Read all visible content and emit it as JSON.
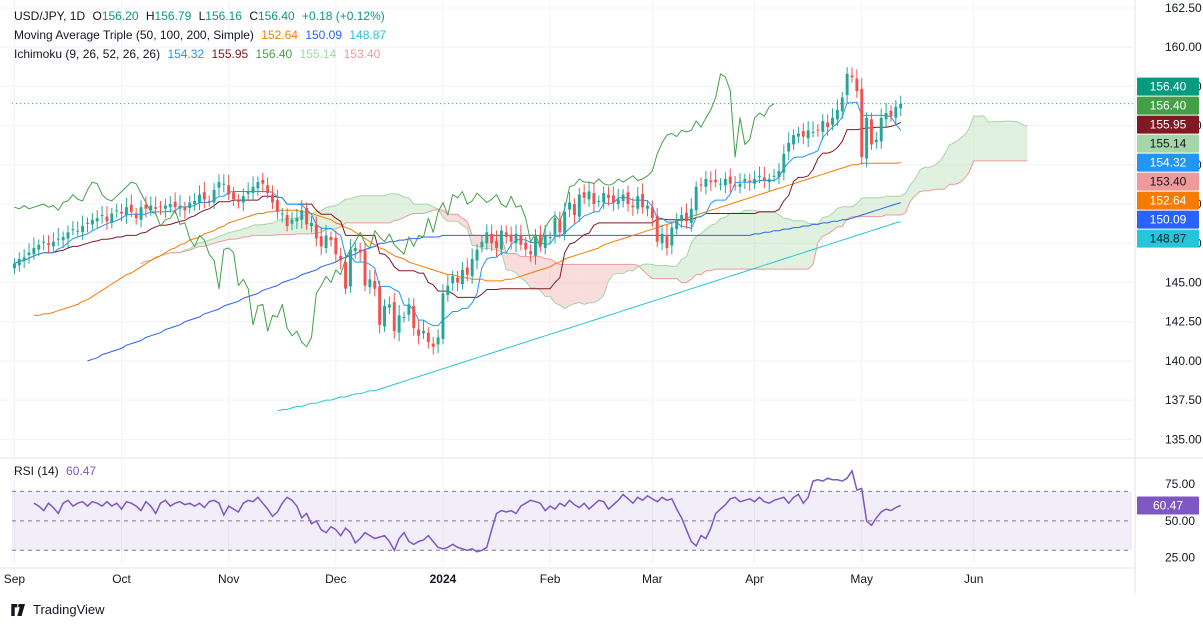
{
  "header": {
    "symbol": "USD/JPY, 1D",
    "o_label": "O",
    "open": "156.20",
    "h_label": "H",
    "high": "156.79",
    "l_label": "L",
    "low": "156.16",
    "c_label": "C",
    "close": "156.40",
    "change": "+0.18 (+0.12%)"
  },
  "ma_legend": {
    "label": "Moving Average Triple (50, 100, 200, Simple)",
    "v50": "152.64",
    "v100": "150.09",
    "v200": "148.87"
  },
  "ichimoku_legend": {
    "label": "Ichimoku (9, 26, 52, 26, 26)",
    "conversion": "154.32",
    "base": "155.95",
    "lagging": "156.40",
    "spanA": "155.14",
    "spanB": "153.40"
  },
  "rsi_legend": {
    "label": "RSI (14)",
    "value": "60.47"
  },
  "branding": {
    "name": "TradingView"
  },
  "colors": {
    "up": "#26a69a",
    "down": "#ef5350",
    "ma50": "#f57c00",
    "ma100": "#2962ff",
    "ma200": "#26c6da",
    "conversion": "#2196f3",
    "base": "#801922",
    "lagging": "#43a047",
    "cloud_bull": "#a5d6a7",
    "cloud_bear": "#ef9a9a",
    "rsi": "#7e57c2"
  },
  "chart_data": [
    {
      "type": "candlestick",
      "title": "USD/JPY, 1D",
      "x_ticks": [
        "Sep",
        "Oct",
        "Nov",
        "Dec",
        "2024",
        "Feb",
        "Mar",
        "Apr",
        "May",
        "Jun"
      ],
      "y_ticks": [
        "135.00",
        "137.50",
        "140.00",
        "142.50",
        "145.00",
        "147.50",
        "150.00",
        "152.50",
        "155.00",
        "157.50",
        "160.00",
        "162.50"
      ],
      "ylim": [
        134,
        162.5
      ],
      "last_close": 156.4,
      "price_labels": [
        {
          "text": "156.40",
          "value": 156.4,
          "color": "#089981"
        },
        {
          "text": "156.40",
          "value": 156.4,
          "color": "#43a047"
        },
        {
          "text": "155.95",
          "value": 155.95,
          "color": "#801922"
        },
        {
          "text": "155.14",
          "value": 155.14,
          "color": "#a5d6a7"
        },
        {
          "text": "154.32",
          "value": 154.32,
          "color": "#2196f3"
        },
        {
          "text": "153.40",
          "value": 153.4,
          "color": "#ef9a9a"
        },
        {
          "text": "152.64",
          "value": 152.64,
          "color": "#f57c00"
        },
        {
          "text": "150.09",
          "value": 150.09,
          "color": "#2962ff"
        },
        {
          "text": "148.87",
          "value": 148.87,
          "color": "#26c6da"
        }
      ],
      "x_months_at_index": {
        "Sep": 0,
        "Oct": 22,
        "Nov": 44,
        "Dec": 66,
        "2024": 88,
        "Feb": 110,
        "Mar": 131,
        "Apr": 152,
        "May": 174,
        "Jun": 197
      },
      "close": [
        146.2,
        146.5,
        146.6,
        146.9,
        147.2,
        147.4,
        147.6,
        147.4,
        147.6,
        147.8,
        147.9,
        148.2,
        148.4,
        148.3,
        148.6,
        148.8,
        149.0,
        149.1,
        149.3,
        148.9,
        149.4,
        149.6,
        149.4,
        149.8,
        149.5,
        149.1,
        149.8,
        149.7,
        149.9,
        149.7,
        149.8,
        149.9,
        150.0,
        149.8,
        149.9,
        149.6,
        150.1,
        150.2,
        150.6,
        150.3,
        150.2,
        150.9,
        151.4,
        151.3,
        150.6,
        150.3,
        150.2,
        150.5,
        150.8,
        151.1,
        151.4,
        151.3,
        150.7,
        150.1,
        149.5,
        149.4,
        148.6,
        149.0,
        149.1,
        149.6,
        148.7,
        148.8,
        147.8,
        147.3,
        148.0,
        147.7,
        146.8,
        146.4,
        144.6,
        147.1,
        147.2,
        146.9,
        144.8,
        145.2,
        144.6,
        142.3,
        143.5,
        143.6,
        141.9,
        142.9,
        142.8,
        143.6,
        142.1,
        141.6,
        141.9,
        141.2,
        140.9,
        141.5,
        144.3,
        144.8,
        145.4,
        145.0,
        145.8,
        145.5,
        146.5,
        147.1,
        147.6,
        148.2,
        147.5,
        147.2,
        148.3,
        147.9,
        147.6,
        148.1,
        147.4,
        147.1,
        146.8,
        147.9,
        147.3,
        148.0,
        147.9,
        149.1,
        148.2,
        149.5,
        150.1,
        149.3,
        150.6,
        150.4,
        150.8,
        150.0,
        150.2,
        150.7,
        150.4,
        150.1,
        150.3,
        150.6,
        150.0,
        149.8,
        150.5,
        149.8,
        149.9,
        149.1,
        147.6,
        148.1,
        147.2,
        148.5,
        149.0,
        149.3,
        148.9,
        149.7,
        151.1,
        151.2,
        151.6,
        151.4,
        151.4,
        151.3,
        151.6,
        151.3,
        151.2,
        151.3,
        151.6,
        151.4,
        151.6,
        151.8,
        151.5,
        151.6,
        151.8,
        152.1,
        153.2,
        153.9,
        154.4,
        154.5,
        154.3,
        154.7,
        154.6,
        154.7,
        155.3,
        154.9,
        155.5,
        156.0,
        156.8,
        158.3,
        158.1,
        157.2,
        153.0,
        155.5,
        153.8,
        154.1,
        155.5,
        155.8,
        155.6,
        156.2,
        156.4
      ],
      "open_offset_note": "",
      "ma50": [
        142.9,
        142.9,
        143.0,
        143.0,
        143.1,
        143.2,
        143.3,
        143.4,
        143.5,
        143.6,
        143.8,
        143.9,
        144.1,
        144.3,
        144.5,
        144.7,
        144.9,
        145.1,
        145.3,
        145.5,
        145.6,
        145.8,
        146.0,
        146.2,
        146.4,
        146.6,
        146.7,
        146.9,
        147.1,
        147.2,
        147.4,
        147.5,
        147.7,
        147.8,
        147.9,
        148.1,
        148.2,
        148.3,
        148.5,
        148.6,
        148.8,
        148.9,
        149.0,
        149.1,
        149.2,
        149.3,
        149.4,
        149.4,
        149.5,
        149.5,
        149.6,
        149.6,
        149.6,
        149.6,
        149.6,
        149.5,
        149.5,
        149.4,
        149.3,
        149.2,
        149.1,
        149.0,
        148.8,
        148.7,
        148.5,
        148.4,
        148.2,
        148.0,
        147.8,
        147.6,
        147.4,
        147.2,
        147.1,
        146.9,
        146.7,
        146.6,
        146.5,
        146.3,
        146.2,
        146.1,
        146.0,
        145.9,
        145.8,
        145.7,
        145.6,
        145.5,
        145.5,
        145.4,
        145.3,
        145.3,
        145.2,
        145.2,
        145.2,
        145.1,
        145.1,
        145.1,
        145.1,
        145.2,
        145.2,
        145.3,
        145.4,
        145.5,
        145.6,
        145.7,
        145.8,
        145.9,
        146.0,
        146.2,
        146.3,
        146.5,
        146.6,
        146.7,
        146.8,
        146.9,
        147.0,
        147.1,
        147.2,
        147.4,
        147.5,
        147.6,
        147.7,
        147.8,
        147.9,
        148.0,
        148.1,
        148.2,
        148.3,
        148.4,
        148.5,
        148.6,
        148.7,
        148.8,
        148.9,
        149.0,
        149.1,
        149.2,
        149.3,
        149.4,
        149.5,
        149.6,
        149.7,
        149.8,
        149.9,
        150.0,
        150.1,
        150.2,
        150.3,
        150.4,
        150.5,
        150.6,
        150.7,
        150.8,
        150.9,
        151.0,
        151.1,
        151.2,
        151.3,
        151.4,
        151.5,
        151.6,
        151.7,
        151.8,
        151.9,
        152.0,
        152.1,
        152.2,
        152.3,
        152.4,
        152.5,
        152.5,
        152.6,
        152.6,
        152.6,
        152.6,
        152.6,
        152.6,
        152.6,
        152.6,
        152.64
      ],
      "ma100": [
        140.0,
        140.1,
        140.2,
        140.4,
        140.5,
        140.6,
        140.7,
        140.8,
        141.0,
        141.1,
        141.2,
        141.3,
        141.5,
        141.6,
        141.7,
        141.8,
        142.0,
        142.1,
        142.2,
        142.3,
        142.5,
        142.6,
        142.7,
        142.8,
        143.0,
        143.1,
        143.2,
        143.3,
        143.5,
        143.6,
        143.7,
        143.8,
        144.0,
        144.1,
        144.2,
        144.3,
        144.5,
        144.6,
        144.7,
        144.8,
        145.0,
        145.1,
        145.2,
        145.3,
        145.5,
        145.6,
        145.7,
        145.8,
        146.0,
        146.1,
        146.2,
        146.3,
        146.5,
        146.6,
        146.7,
        146.8,
        147.0,
        147.1,
        147.2,
        147.3,
        147.5,
        147.5,
        147.6,
        147.6,
        147.7,
        147.7,
        147.8,
        147.8,
        147.8,
        147.9,
        147.9,
        147.9,
        147.9,
        148.0,
        148.0,
        148.0,
        148.0,
        148.0,
        148.0,
        148.0,
        148.0,
        148.0,
        148.0,
        148.0,
        148.0,
        148.0,
        148.0,
        148.0,
        148.0,
        148.0,
        148.0,
        148.0,
        148.0,
        148.0,
        148.0,
        148.0,
        148.0,
        148.0,
        148.0,
        148.0,
        148.0,
        148.0,
        148.0,
        148.0,
        148.0,
        148.0,
        148.0,
        148.0,
        148.0,
        148.0,
        148.0,
        148.0,
        148.0,
        148.0,
        148.0,
        148.0,
        148.0,
        148.0,
        148.0,
        148.0,
        148.0,
        148.0,
        148.0,
        148.0,
        148.0,
        148.0,
        148.0,
        148.0,
        148.0,
        148.0,
        148.0,
        148.0,
        148.0,
        148.0,
        148.0,
        148.0,
        148.0,
        148.1,
        148.1,
        148.2,
        148.2,
        148.3,
        148.3,
        148.4,
        148.4,
        148.5,
        148.5,
        148.6,
        148.6,
        148.7,
        148.7,
        148.8,
        148.8,
        148.9,
        148.9,
        149.0,
        149.0,
        149.1,
        149.2,
        149.3,
        149.4,
        149.5,
        149.6,
        149.7,
        149.8,
        149.9,
        150.0,
        150.09
      ],
      "ma200": [
        136.8,
        136.9,
        136.9,
        137.0,
        137.1,
        137.1,
        137.2,
        137.3,
        137.3,
        137.4,
        137.5,
        137.5,
        137.6,
        137.7,
        137.7,
        137.8,
        137.9,
        137.9,
        138.0,
        138.1,
        138.1,
        138.2,
        138.3,
        138.4,
        138.5,
        138.6,
        138.7,
        138.8,
        138.9,
        139.0,
        139.1,
        139.2,
        139.3,
        139.4,
        139.5,
        139.6,
        139.7,
        139.8,
        139.9,
        140.0,
        140.1,
        140.2,
        140.3,
        140.4,
        140.5,
        140.6,
        140.7,
        140.8,
        140.9,
        141.0,
        141.1,
        141.2,
        141.3,
        141.4,
        141.5,
        141.6,
        141.7,
        141.8,
        141.9,
        142.0,
        142.1,
        142.2,
        142.3,
        142.4,
        142.5,
        142.6,
        142.7,
        142.8,
        142.9,
        143.0,
        143.1,
        143.2,
        143.3,
        143.4,
        143.5,
        143.6,
        143.7,
        143.8,
        143.9,
        144.0,
        144.1,
        144.2,
        144.3,
        144.4,
        144.5,
        144.6,
        144.7,
        144.8,
        144.9,
        145.0,
        145.1,
        145.2,
        145.3,
        145.4,
        145.5,
        145.6,
        145.7,
        145.8,
        145.9,
        146.0,
        146.1,
        146.2,
        146.3,
        146.4,
        146.5,
        146.6,
        146.7,
        146.8,
        146.9,
        147.0,
        147.1,
        147.2,
        147.3,
        147.4,
        147.5,
        147.6,
        147.7,
        147.8,
        147.9,
        148.0,
        148.1,
        148.2,
        148.3,
        148.4,
        148.5,
        148.6,
        148.7,
        148.8,
        148.87
      ],
      "ma200_start_index": 0
    },
    {
      "type": "line",
      "title": "RSI (14)",
      "y_ticks": [
        "25.00",
        "50.00",
        "75.00"
      ],
      "ylim": [
        20,
        90
      ],
      "bands": [
        30,
        50,
        70
      ],
      "last_value": 60.47,
      "values": [
        62,
        60,
        57,
        62,
        59,
        55,
        62,
        64,
        60,
        62,
        63,
        60,
        63,
        62,
        60,
        63,
        60,
        62,
        58,
        63,
        62,
        60,
        57,
        63,
        60,
        55,
        62,
        64,
        60,
        62,
        63,
        61,
        62,
        60,
        62,
        59,
        63,
        64,
        62,
        54,
        60,
        58,
        56,
        62,
        64,
        63,
        66,
        62,
        58,
        53,
        56,
        62,
        66,
        64,
        60,
        52,
        55,
        48,
        50,
        44,
        42,
        46,
        44,
        40,
        45,
        42,
        35,
        38,
        42,
        40,
        38,
        39,
        40,
        36,
        30,
        38,
        42,
        36,
        34,
        36,
        37,
        40,
        36,
        32,
        31,
        32,
        34,
        32,
        31,
        30,
        31,
        29,
        30,
        32,
        44,
        55,
        57,
        56,
        57,
        55,
        60,
        62,
        64,
        63,
        62,
        57,
        60,
        58,
        62,
        60,
        64,
        61,
        59,
        62,
        58,
        61,
        64,
        63,
        58,
        61,
        64,
        68,
        65,
        62,
        66,
        64,
        67,
        65,
        63,
        66,
        64,
        65,
        58,
        52,
        44,
        36,
        33,
        40,
        38,
        45,
        55,
        58,
        61,
        65,
        66,
        63,
        64,
        65,
        63,
        66,
        63,
        62,
        64,
        65,
        66,
        62,
        66,
        68,
        62,
        66,
        77,
        78,
        77,
        79,
        78,
        78,
        77,
        79,
        84,
        71,
        72,
        50,
        47,
        52,
        56,
        58,
        57,
        59,
        60.47
      ]
    }
  ]
}
